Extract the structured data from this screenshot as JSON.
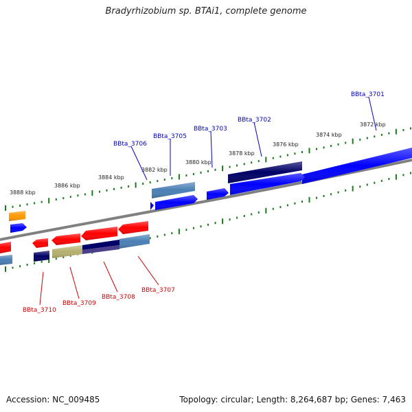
{
  "title": "Bradyrhizobium sp. BTAi1, complete genome",
  "footer": {
    "accession": "Accession: NC_009485",
    "summary": "Topology: circular; Length: 8,264,687 bp; Genes: 7,463"
  },
  "colors": {
    "backbone": "#808080",
    "ticks": "#1a7a1a",
    "forward_label": "#0000bb",
    "reverse_label": "#cc0000",
    "gene_blue": "#0000ff",
    "gene_navy": "#000066",
    "gene_steel": "#4a7fb5",
    "gene_red": "#ff0000",
    "gene_orange": "#ff9900",
    "gene_khaki": "#b5b06e",
    "gene_purple": "#4a3d8a"
  },
  "scale": {
    "unit": "kbp",
    "labels": [
      "3888 kbp",
      "3886 kbp",
      "3884 kbp",
      "3882 kbp",
      "3880 kbp",
      "3878 kbp",
      "3876 kbp",
      "3874 kbp",
      "3872 kbp"
    ]
  },
  "forward_genes": {
    "labels": [
      "BBta_3701",
      "BBta_3702",
      "BBta_3703",
      "BBta_3705",
      "BBta_3706"
    ]
  },
  "reverse_genes": {
    "labels": [
      "BBta_3707",
      "BBta_3708",
      "BBta_3709",
      "BBta_3710"
    ]
  }
}
